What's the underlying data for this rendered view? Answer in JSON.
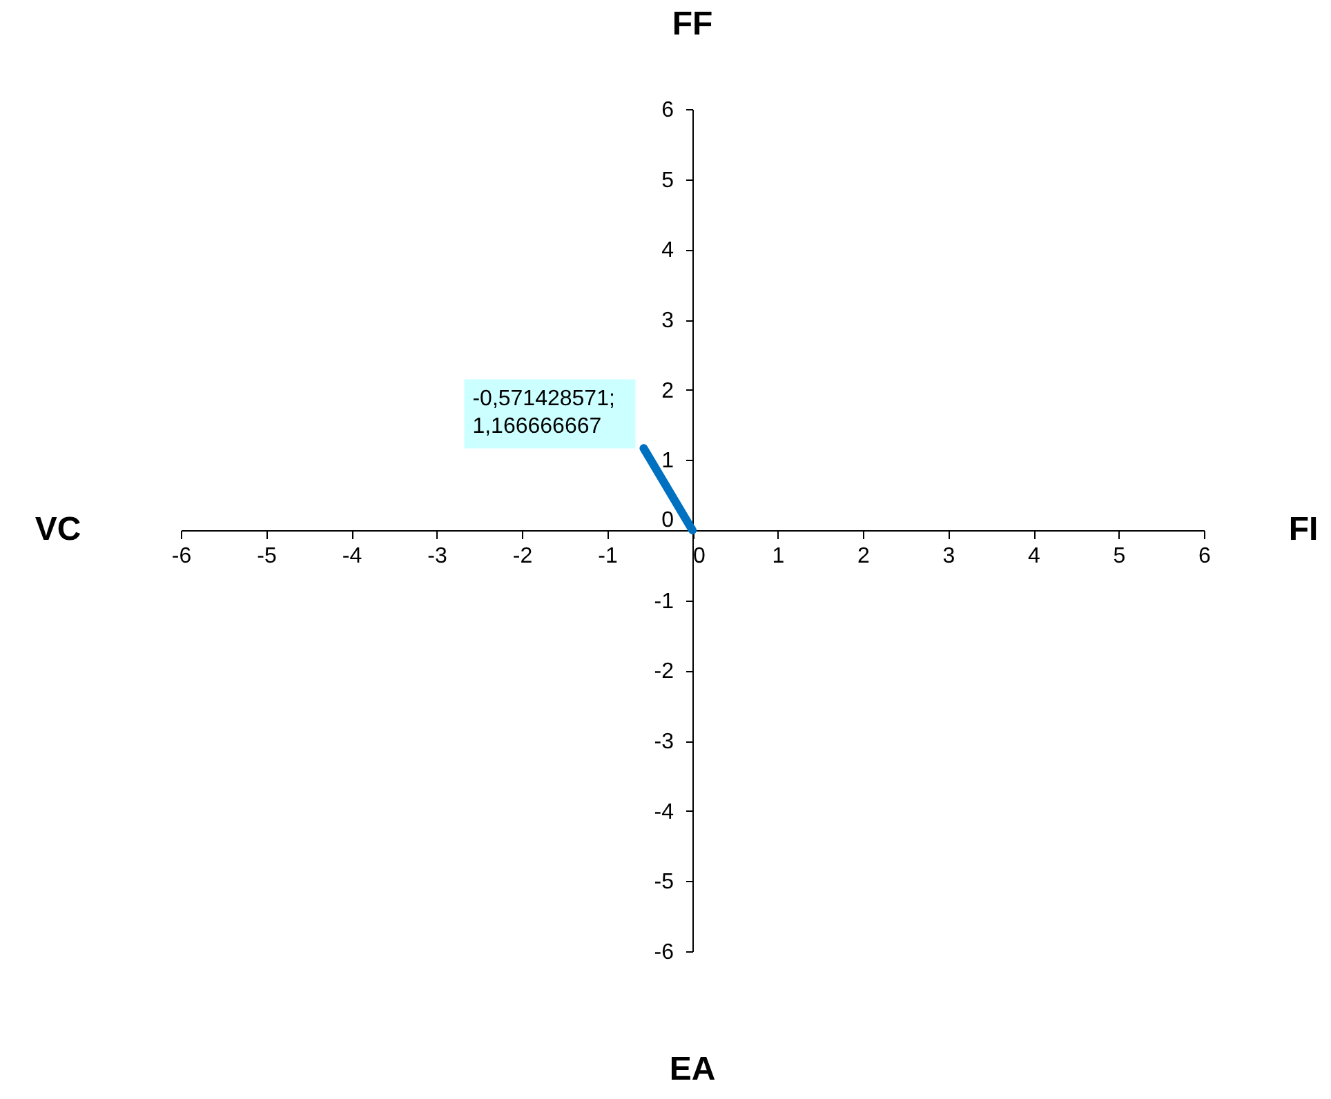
{
  "chart_data": {
    "type": "line",
    "annotations": [
      "FF",
      "VC",
      "FI",
      "EA"
    ],
    "xlim": [
      -6,
      6
    ],
    "ylim": [
      -6,
      6
    ],
    "xticks": [
      -6,
      -5,
      -4,
      -3,
      -2,
      -1,
      0,
      1,
      2,
      3,
      4,
      5,
      6
    ],
    "yticks": [
      -6,
      -5,
      -4,
      -3,
      -2,
      -1,
      0,
      1,
      2,
      3,
      4,
      5,
      6
    ],
    "grid": false,
    "legend": false,
    "marker": "none",
    "line_style": "solid",
    "series": [
      {
        "color": "#0070c0",
        "x": [
          0,
          -0.571428571
        ],
        "values": [
          0,
          1.166666667
        ],
        "value_labels": [
          null,
          "-0,571428571; 1,166666667"
        ]
      }
    ]
  }
}
